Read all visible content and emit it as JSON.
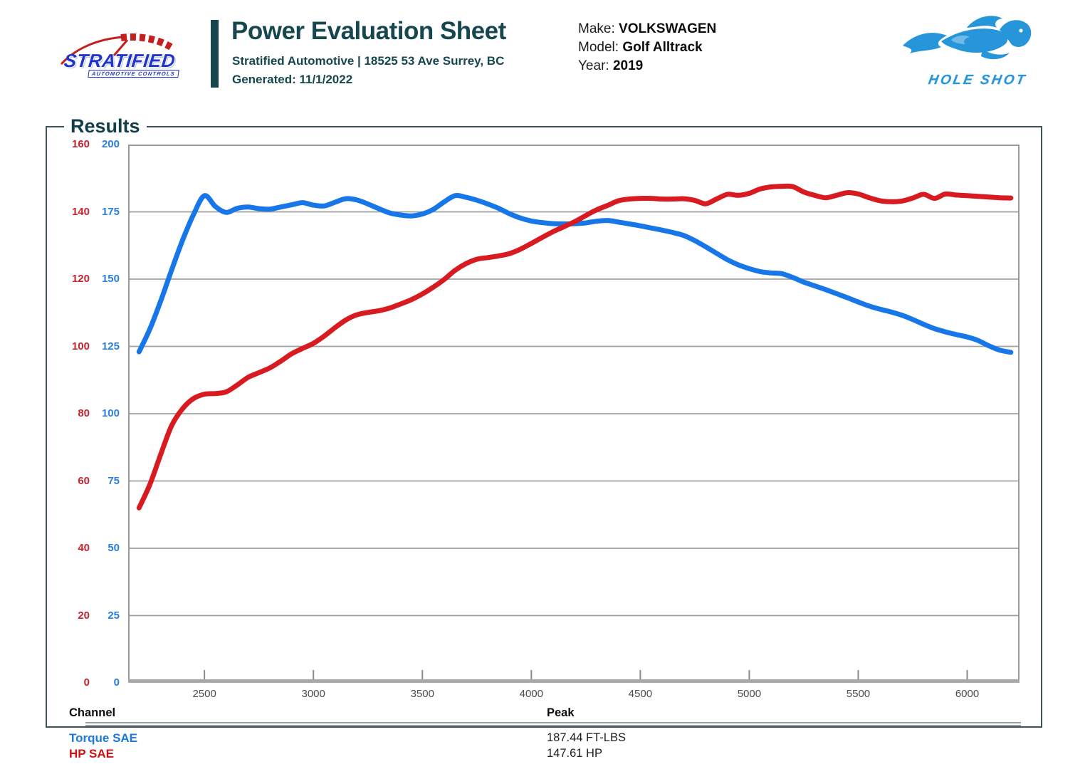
{
  "header": {
    "logo": {
      "brand": "STRATIFIED",
      "sub": "AUTOMOTIVE CONTROLS"
    },
    "title": "Power Evaluation Sheet",
    "subtitle": "Stratified Automotive | 18525 53 Ave Surrey, BC",
    "generated_label": "Generated:",
    "generated_value": "11/1/2022",
    "vehicle": {
      "make_label": "Make:",
      "make": "VOLKSWAGEN",
      "model_label": "Model:",
      "model": "Golf Alltrack",
      "year_label": "Year:",
      "year": "2019"
    },
    "partner": {
      "name": "HOLE SHOT",
      "icon": "flaming-horse-icon",
      "color": "#2795d9"
    }
  },
  "results": {
    "legend": "Results",
    "table": {
      "col1": "Channel",
      "col2": "Peak",
      "rows": [
        {
          "channel": "Torque SAE",
          "peak": "187.44 FT-LBS",
          "color": "#1a78e0"
        },
        {
          "channel": "HP SAE",
          "peak": "147.61 HP",
          "color": "#cc1016"
        }
      ]
    }
  },
  "chart_data": {
    "type": "line",
    "title": "Results",
    "grid": "horizontal",
    "legend_position": "bottom-table",
    "x_axis": {
      "min": 2150,
      "max": 6240,
      "ticks": [
        2500,
        3000,
        3500,
        4000,
        4500,
        5000,
        5500,
        6000
      ],
      "tick_color": "#4b4b4b"
    },
    "axes": {
      "hp": {
        "side": "left-outer",
        "color": "#c5232e",
        "min": 0,
        "max": 160,
        "step": 20
      },
      "torque": {
        "side": "left-inner",
        "color": "#2a7de1",
        "min": 0,
        "max": 200,
        "step": 25
      }
    },
    "x": [
      2200,
      2250,
      2300,
      2350,
      2400,
      2450,
      2500,
      2550,
      2600,
      2650,
      2700,
      2750,
      2800,
      2850,
      2900,
      2950,
      3000,
      3050,
      3100,
      3150,
      3200,
      3250,
      3300,
      3350,
      3400,
      3450,
      3500,
      3550,
      3600,
      3650,
      3700,
      3750,
      3800,
      3850,
      3900,
      3950,
      4000,
      4050,
      4100,
      4150,
      4200,
      4250,
      4300,
      4350,
      4400,
      4450,
      4500,
      4550,
      4600,
      4650,
      4700,
      4750,
      4800,
      4850,
      4900,
      4950,
      5000,
      5050,
      5100,
      5150,
      5200,
      5250,
      5300,
      5350,
      5400,
      5450,
      5500,
      5550,
      5600,
      5650,
      5700,
      5750,
      5800,
      5850,
      5900,
      5950,
      6000,
      6050,
      6100,
      6150,
      6200
    ],
    "series": [
      {
        "name": "Torque SAE",
        "unit": "FT-LBS",
        "axis": "torque",
        "scale_max": 200,
        "color": "#1877e8",
        "values": [
          123.0,
          131.5,
          142.0,
          153.5,
          164.5,
          174.0,
          181.0,
          177.0,
          174.8,
          176.3,
          176.8,
          176.2,
          176.0,
          176.8,
          177.6,
          178.4,
          177.5,
          177.2,
          178.6,
          179.9,
          179.4,
          177.9,
          176.2,
          174.6,
          173.8,
          173.5,
          174.2,
          175.9,
          178.7,
          181.0,
          180.4,
          179.3,
          177.9,
          176.3,
          174.3,
          172.7,
          171.6,
          171.0,
          170.6,
          170.5,
          170.6,
          170.9,
          171.5,
          171.8,
          171.2,
          170.5,
          169.8,
          169.0,
          168.2,
          167.3,
          166.2,
          164.3,
          162.0,
          159.6,
          157.2,
          155.3,
          153.9,
          152.8,
          152.3,
          152.0,
          150.6,
          148.9,
          147.5,
          146.1,
          144.6,
          143.1,
          141.5,
          140.0,
          138.8,
          137.8,
          136.6,
          135.0,
          133.2,
          131.6,
          130.4,
          129.4,
          128.5,
          127.2,
          125.2,
          123.6,
          122.8
        ]
      },
      {
        "name": "HP SAE",
        "unit": "HP",
        "axis": "hp",
        "scale_max": 160,
        "color": "#d81b21",
        "values": [
          52.0,
          59.0,
          68.0,
          76.5,
          81.5,
          84.5,
          85.8,
          86.0,
          86.5,
          88.5,
          90.8,
          92.2,
          93.6,
          95.6,
          97.8,
          99.4,
          100.9,
          103.1,
          105.6,
          107.9,
          109.4,
          110.1,
          110.6,
          111.4,
          112.6,
          113.9,
          115.6,
          117.6,
          119.9,
          122.6,
          124.6,
          125.9,
          126.4,
          126.9,
          127.6,
          128.9,
          130.6,
          132.4,
          134.1,
          135.6,
          137.1,
          138.9,
          140.6,
          141.9,
          143.3,
          143.8,
          144.0,
          144.0,
          143.8,
          143.8,
          143.9,
          143.4,
          142.4,
          143.8,
          145.2,
          144.9,
          145.5,
          146.8,
          147.4,
          147.6,
          147.5,
          145.9,
          144.9,
          144.2,
          144.9,
          145.7,
          145.3,
          144.2,
          143.3,
          143.0,
          143.2,
          144.1,
          145.2,
          144.0,
          145.3,
          145.0,
          144.8,
          144.6,
          144.4,
          144.2,
          144.1
        ]
      }
    ],
    "peaks": {
      "torque": "187.44 FT-LBS",
      "hp": "147.61 HP"
    }
  }
}
